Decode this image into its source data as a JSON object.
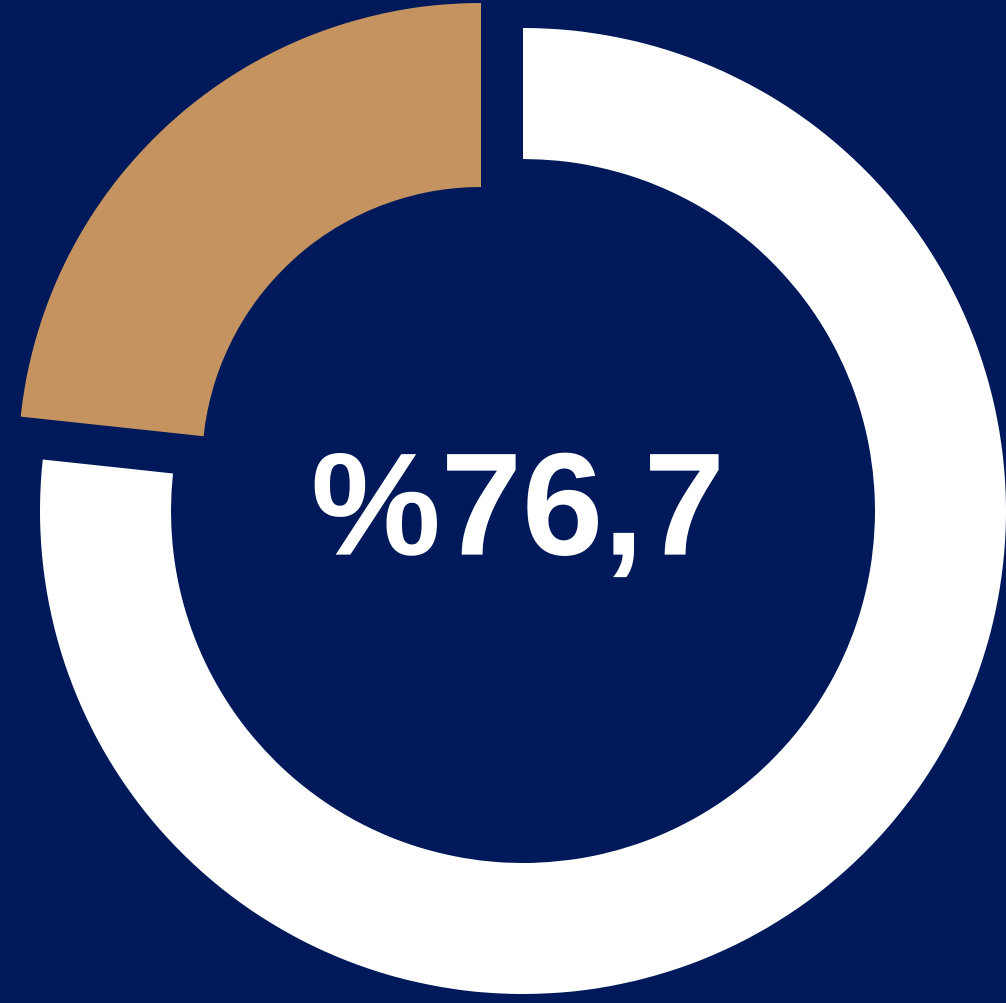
{
  "chart_data": {
    "type": "donut",
    "values": [
      76.7,
      23.3
    ],
    "value_labels": [
      "%76,7",
      null
    ],
    "colors": [
      "#ffffff",
      "#c4935f"
    ],
    "background": "#00195a"
  }
}
